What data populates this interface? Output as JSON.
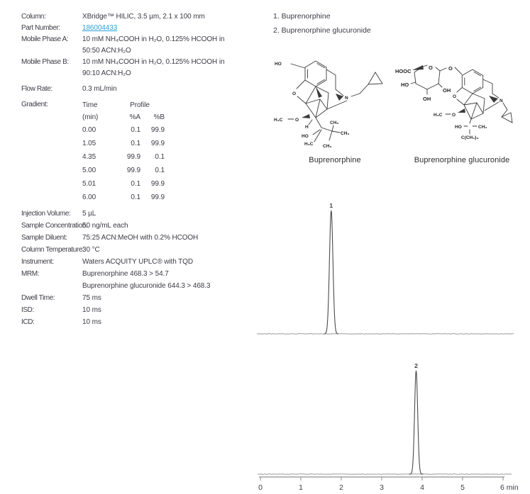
{
  "colors": {
    "text": "#3b3b45",
    "link": "#2f9fd6",
    "structure_line": "#3a3a3a",
    "structure_text": "#222222",
    "trace": "#4a4a4a",
    "baseline": "#9b9b9b",
    "axis": "#8f8f8f"
  },
  "method": {
    "rows_top": [
      {
        "label": "Column:",
        "value": "XBridge™ HILIC, 3.5 µm, 2.1 x 100 mm"
      },
      {
        "label": "Part Number:",
        "value": "186004433",
        "link": true
      },
      {
        "label": "Mobile Phase A:",
        "value": "10 mM NH₄COOH in H₂O, 0.125% HCOOH in"
      },
      {
        "label": "",
        "value": "50:50 ACN:H₂O"
      },
      {
        "label": "Mobile Phase B:",
        "value": "10 mM NH₄COOH in H₂O, 0.125% HCOOH in"
      },
      {
        "label": "",
        "value": "90:10 ACN:H₂O"
      },
      {
        "label": "Flow Rate:",
        "value": "0.3 mL/min",
        "gap": true
      }
    ],
    "gradient": {
      "label": "Gradient:",
      "time_header": "Time",
      "profile_header": "Profile",
      "sub_time": "(min)",
      "sub_a": "%A",
      "sub_b": "%B",
      "rows": [
        [
          "0.00",
          "0.1",
          "99.9"
        ],
        [
          "1.05",
          "0.1",
          "99.9"
        ],
        [
          "4.35",
          "99.9",
          "0.1"
        ],
        [
          "5.00",
          "99.9",
          "0.1"
        ],
        [
          "5.01",
          "0.1",
          "99.9"
        ],
        [
          "6.00",
          "0.1",
          "99.9"
        ]
      ]
    },
    "rows_bottom": [
      {
        "label": "Injection Volume:",
        "value": "5 µL"
      },
      {
        "label": "Sample Concentration:",
        "value": "50 ng/mL each"
      },
      {
        "label": "Sample Diluent:",
        "value": "75:25 ACN:MeOH with 0.2% HCOOH"
      },
      {
        "label": "Column Temperature:",
        "value": "30 °C"
      },
      {
        "label": "Instrument:",
        "value": "Waters ACQUITY UPLC® with TQD"
      },
      {
        "label": "MRM:",
        "value": "Buprenorphine 468.3 > 54.7"
      },
      {
        "label": "",
        "value": "Buprenorphine glucuronide 644.3 > 468.3"
      },
      {
        "label": "Dwell Time:",
        "value": "75 ms"
      },
      {
        "label": "ISD:",
        "value": "10 ms"
      },
      {
        "label": "ICD:",
        "value": "10 ms"
      }
    ]
  },
  "legend": {
    "item1": "1. Buprenorphine",
    "item2": "2. Buprenorphine glucuronide"
  },
  "structures": [
    {
      "caption": "Buprenorphine",
      "labels": {
        "phenol": "HO",
        "furan_o": "O",
        "methoxy_c": "H₃C",
        "methoxy_o": "O",
        "amine": "N",
        "stereo_h": "H",
        "carbinol_ho": "HO",
        "carbinol_ch3": "H₃C",
        "tbu_ch3_a": "CH₃",
        "tbu_ch3_b": "CH₃",
        "tbu_ch3_c": "CH₃"
      }
    },
    {
      "caption": "Buprenorphine glucuronide",
      "labels": {
        "acid": "HOOC",
        "ring_o": "O",
        "ho2": "HO",
        "oh3": "OH",
        "oh4": "OH",
        "glyco_o": "O",
        "furan_o": "O",
        "methoxy_c": "H₃C",
        "methoxy_o": "O",
        "amine": "N",
        "carbinol_ho": "HO",
        "carbinol_ch3": "CH₃",
        "tbu": "C(CH₃)₃"
      }
    }
  ],
  "chart_data": [
    {
      "type": "line",
      "name": "chromatogram-1",
      "compound": "Buprenorphine",
      "x_range": [
        0,
        6
      ],
      "x_unit": "min",
      "x_axis_visible": false,
      "peaks": [
        {
          "label": "1",
          "compound": "Buprenorphine",
          "retention_min": 1.75,
          "rel_height": 1.0,
          "width_min": 0.1
        }
      ]
    },
    {
      "type": "line",
      "name": "chromatogram-2",
      "compound": "Buprenorphine glucuronide",
      "x_range": [
        0,
        6
      ],
      "x_unit": "min",
      "x_axis_visible": true,
      "x_ticks": [
        0,
        1,
        2,
        3,
        4,
        5,
        6
      ],
      "peaks": [
        {
          "label": "2",
          "compound": "Buprenorphine glucuronide",
          "retention_min": 3.85,
          "rel_height": 1.0,
          "width_min": 0.09
        }
      ]
    }
  ]
}
